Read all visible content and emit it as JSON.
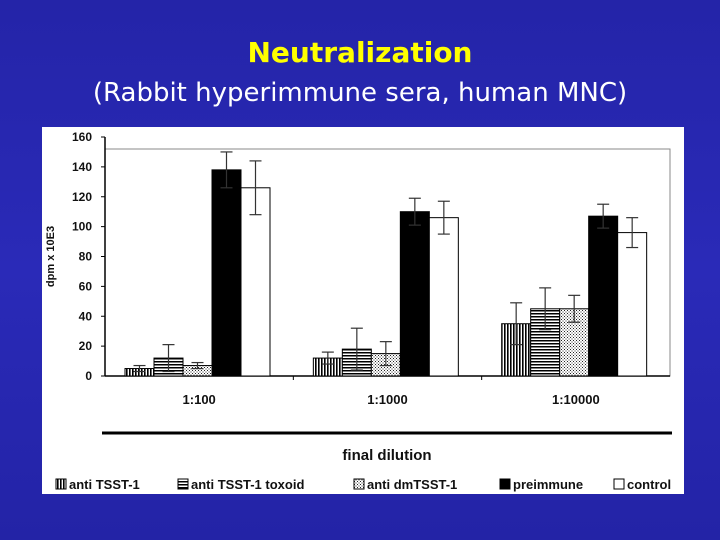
{
  "slide": {
    "title": "Neutralization",
    "subtitle": "(Rabbit hyperimmune sera, human MNC)"
  },
  "chart_data": {
    "type": "bar",
    "title": "",
    "xlabel": "final dilution",
    "ylabel": "dpm x 10E3",
    "ylim": [
      0,
      160
    ],
    "yticks": [
      0,
      20,
      40,
      60,
      80,
      100,
      120,
      140,
      160
    ],
    "categories": [
      "1:100",
      "1:1000",
      "1:10000"
    ],
    "legend_position": "bottom",
    "grid": false,
    "series": [
      {
        "name": "anti TSST-1",
        "pattern": "vertical-stripes",
        "values": [
          5,
          12,
          35
        ],
        "errors": [
          2,
          4,
          14
        ]
      },
      {
        "name": "anti TSST-1 toxoid",
        "pattern": "horizontal-stripes",
        "values": [
          12,
          18,
          45
        ],
        "errors": [
          9,
          14,
          14
        ]
      },
      {
        "name": "anti dmTSST-1",
        "pattern": "dotted",
        "values": [
          7,
          15,
          45
        ],
        "errors": [
          2,
          8,
          9
        ]
      },
      {
        "name": "preimmune",
        "pattern": "solid-black",
        "values": [
          138,
          110,
          107
        ],
        "errors": [
          12,
          9,
          8
        ]
      },
      {
        "name": "control",
        "pattern": "white",
        "values": [
          126,
          106,
          96
        ],
        "errors": [
          18,
          11,
          10
        ]
      }
    ]
  }
}
